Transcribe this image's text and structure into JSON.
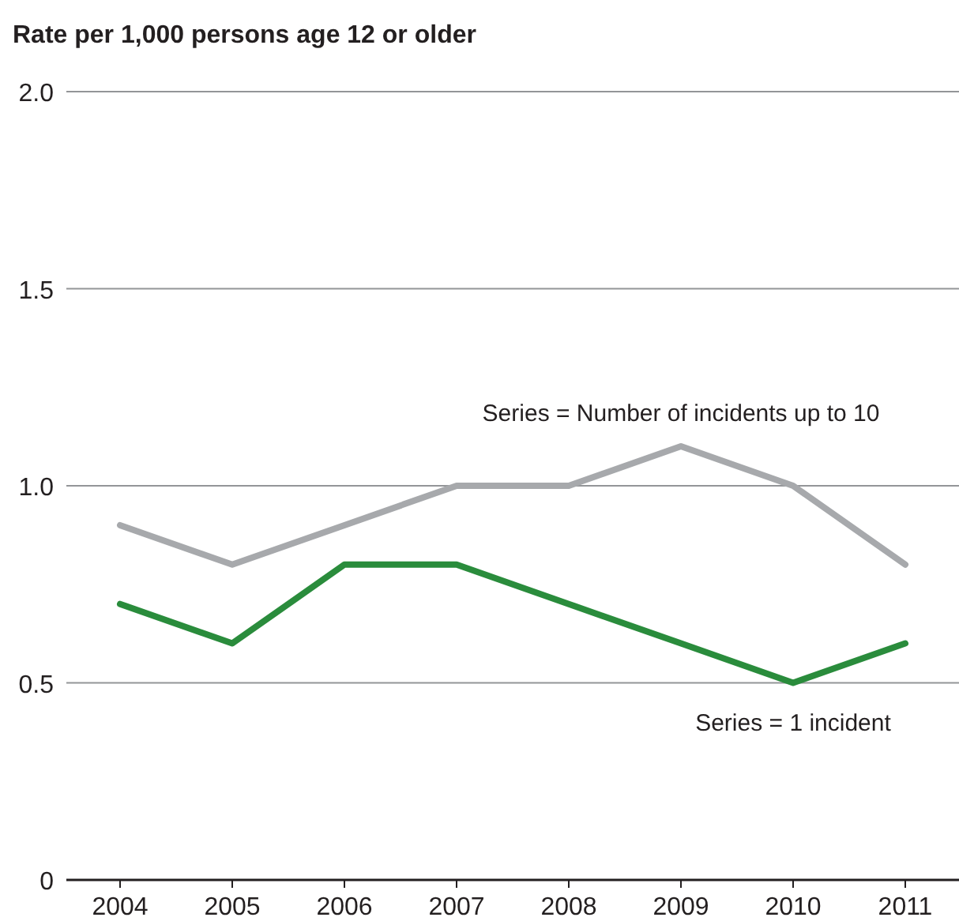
{
  "chart_data": {
    "type": "line",
    "ylabel": "Rate per 1,000 persons age 12 or older",
    "categories": [
      "2004",
      "2005",
      "2006",
      "2007",
      "2008",
      "2009",
      "2010",
      "2011"
    ],
    "series": [
      {
        "name": "Series = Number of incidents up to 10",
        "color": "#a7a9ac",
        "values": [
          0.9,
          0.8,
          0.9,
          1.0,
          1.0,
          1.1,
          1.0,
          0.8
        ]
      },
      {
        "name": "Series = 1 incident",
        "color": "#2a8c3c",
        "values": [
          0.7,
          0.6,
          0.8,
          0.8,
          0.7,
          0.6,
          0.5,
          0.6
        ]
      }
    ],
    "ylim": [
      0,
      2
    ],
    "yticks": [
      0,
      {
        "value": 0.5,
        "label": "0.5"
      },
      {
        "value": 1,
        "label": "1.0"
      },
      {
        "value": 1.5,
        "label": "1.5"
      },
      {
        "value": 2,
        "label": "2.0"
      }
    ],
    "grid": "y",
    "marker": "none",
    "line_style": "solid"
  }
}
